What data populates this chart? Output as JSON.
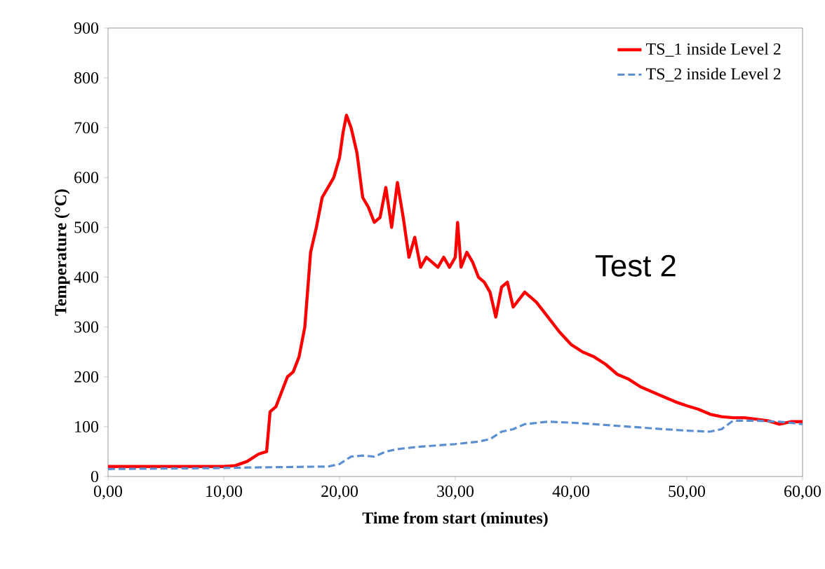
{
  "chart_data": {
    "type": "line",
    "xlabel": "Time from start (minutes)",
    "ylabel": "Temperature (°C)",
    "xlim": [
      0,
      60
    ],
    "ylim": [
      0,
      900
    ],
    "xticks": [
      {
        "value": 0,
        "label": "0,00"
      },
      {
        "value": 10,
        "label": "10,00"
      },
      {
        "value": 20,
        "label": "20,00"
      },
      {
        "value": 30,
        "label": "30,00"
      },
      {
        "value": 40,
        "label": "40,00"
      },
      {
        "value": 50,
        "label": "50,00"
      },
      {
        "value": 60,
        "label": "60,00"
      }
    ],
    "yticks": [
      0,
      100,
      200,
      300,
      400,
      500,
      600,
      700,
      800,
      900
    ],
    "legend": "top right",
    "grid": false,
    "marker": "none",
    "annotations": [
      "Test 2"
    ],
    "series": [
      {
        "name": "TS_1 inside Level 2",
        "color": "#ff0000",
        "line_style": "solid",
        "x": [
          0,
          5,
          10,
          11,
          12,
          13,
          13.7,
          14,
          14.5,
          15,
          15.5,
          16,
          16.5,
          17,
          17.5,
          18,
          18.5,
          19,
          19.5,
          20,
          20.3,
          20.6,
          21,
          21.5,
          22,
          22.5,
          23,
          23.5,
          24,
          24.5,
          25,
          25.5,
          26,
          26.5,
          27,
          27.5,
          28,
          28.5,
          29,
          29.5,
          30,
          30.2,
          30.5,
          31,
          31.5,
          32,
          32.5,
          33,
          33.5,
          34,
          34.5,
          35,
          36,
          37,
          38,
          39,
          40,
          41,
          42,
          43,
          44,
          45,
          46,
          47,
          48,
          49,
          50,
          51,
          52,
          53,
          54,
          55,
          56,
          57,
          58,
          59,
          60
        ],
        "values": [
          20,
          20,
          20,
          22,
          30,
          45,
          50,
          130,
          140,
          170,
          200,
          210,
          240,
          300,
          450,
          500,
          560,
          580,
          600,
          640,
          690,
          725,
          700,
          650,
          560,
          540,
          510,
          520,
          580,
          500,
          590,
          520,
          440,
          480,
          420,
          440,
          430,
          420,
          440,
          420,
          440,
          510,
          420,
          450,
          430,
          400,
          390,
          370,
          320,
          380,
          390,
          340,
          370,
          350,
          320,
          290,
          265,
          250,
          240,
          225,
          205,
          195,
          180,
          170,
          160,
          150,
          142,
          135,
          125,
          120,
          118,
          118,
          115,
          112,
          105,
          110,
          110
        ]
      },
      {
        "name": "TS_2 inside Level 2",
        "color": "#5b8fd1",
        "line_style": "dashed",
        "x": [
          0,
          10,
          12,
          19,
          20,
          21,
          22,
          23,
          24,
          25,
          27,
          30,
          32,
          33,
          34,
          35,
          36,
          38,
          40,
          42,
          45,
          48,
          50,
          52,
          53,
          54,
          56,
          58,
          60
        ],
        "values": [
          15,
          17,
          18,
          20,
          25,
          40,
          42,
          40,
          50,
          55,
          60,
          65,
          70,
          75,
          90,
          95,
          105,
          110,
          108,
          105,
          100,
          95,
          92,
          90,
          95,
          112,
          112,
          110,
          105
        ]
      }
    ]
  }
}
